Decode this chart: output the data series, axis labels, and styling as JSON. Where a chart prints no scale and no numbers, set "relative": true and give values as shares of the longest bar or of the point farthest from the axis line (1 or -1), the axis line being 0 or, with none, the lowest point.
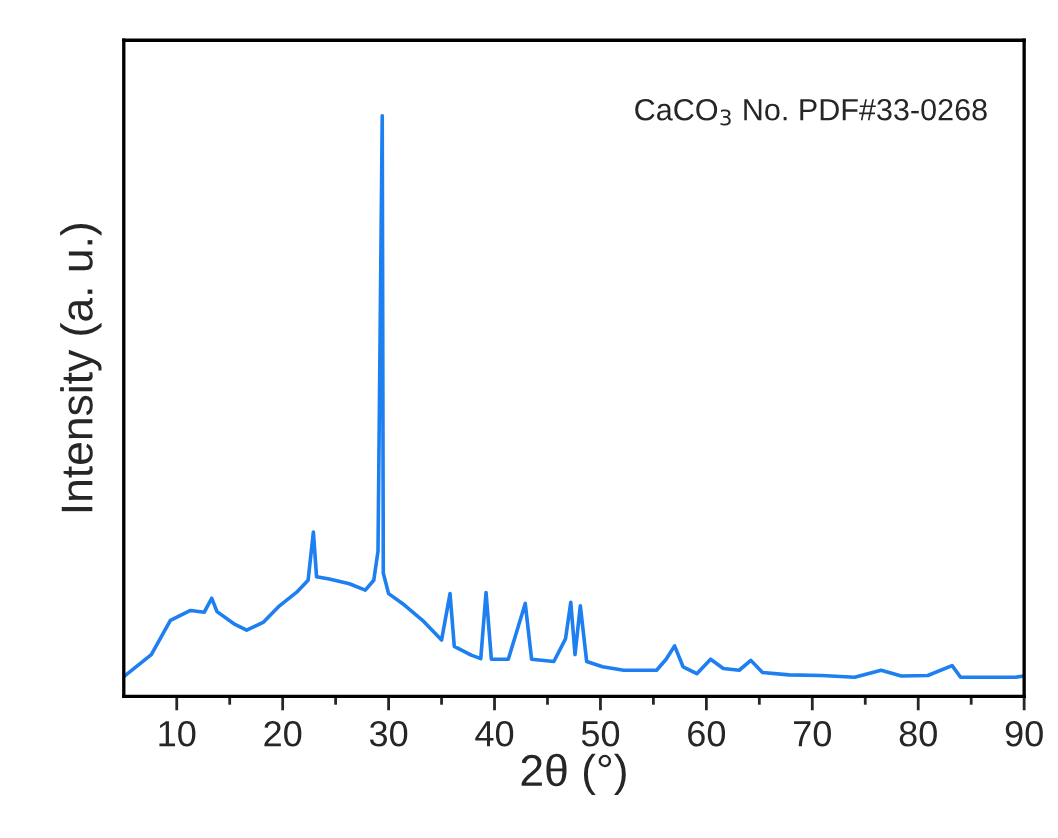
{
  "chart_data": {
    "type": "line",
    "relative": true,
    "xlabel": "2θ (°)",
    "ylabel": "Intensity (a. u.)",
    "annotations": [
      "CaCO$_{3}$ No. PDF#33-0268"
    ],
    "xlim": [
      5,
      90
    ],
    "xticks": [
      10,
      {
        "value": 15,
        "label": null
      },
      20,
      {
        "value": 25,
        "label": null
      },
      30,
      {
        "value": 35,
        "label": null
      },
      40,
      {
        "value": 45,
        "label": null
      },
      50,
      {
        "value": 55,
        "label": null
      },
      60,
      {
        "value": 65,
        "label": null
      },
      70,
      {
        "value": 75,
        "label": null
      },
      80,
      {
        "value": 85,
        "label": null
      },
      90
    ],
    "tick_labels": "x",
    "grid": false,
    "legend": false,
    "series": [
      {
        "color": "#1e7ff0",
        "x": [
          5,
          7.6,
          9.4,
          11.3,
          12.6,
          13.3,
          13.8,
          15.4,
          16.6,
          18.2,
          19.7,
          21.3,
          22.4,
          22.9,
          23.2,
          24.4,
          26.3,
          27.8,
          28.6,
          29.0,
          29.4,
          29.5,
          30.0,
          31.3,
          33.2,
          35.0,
          35.8,
          36.2,
          37.8,
          38.7,
          39.2,
          39.7,
          41.3,
          42.9,
          43.5,
          45.6,
          46.7,
          47.2,
          47.6,
          48.1,
          48.7,
          50.2,
          52.2,
          55.3,
          56.2,
          57.0,
          57.8,
          59.1,
          60.4,
          61.6,
          63.1,
          64.2,
          65.3,
          67.8,
          70.9,
          74.0,
          76.5,
          78.4,
          80.9,
          83.2,
          84.0,
          86.5,
          89.2,
          90
        ],
        "values": [
          0.034,
          0.072,
          0.131,
          0.148,
          0.145,
          0.169,
          0.146,
          0.125,
          0.114,
          0.128,
          0.156,
          0.179,
          0.2,
          0.283,
          0.206,
          0.202,
          0.194,
          0.183,
          0.2,
          0.25,
          1.0,
          0.212,
          0.177,
          0.16,
          0.131,
          0.097,
          0.177,
          0.086,
          0.071,
          0.065,
          0.179,
          0.064,
          0.064,
          0.16,
          0.064,
          0.06,
          0.099,
          0.162,
          0.072,
          0.156,
          0.06,
          0.051,
          0.045,
          0.045,
          0.064,
          0.087,
          0.051,
          0.039,
          0.064,
          0.048,
          0.045,
          0.062,
          0.041,
          0.037,
          0.036,
          0.033,
          0.045,
          0.035,
          0.036,
          0.053,
          0.033,
          0.033,
          0.033,
          0.035
        ]
      }
    ]
  }
}
